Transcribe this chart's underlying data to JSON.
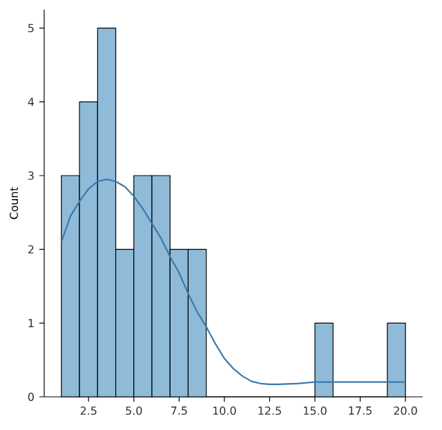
{
  "chart_data": {
    "type": "histogram",
    "ylabel": "Count",
    "series": [
      {
        "color": "#8fbbd9",
        "bins": [
          1,
          2,
          3,
          4,
          5,
          6,
          7,
          8,
          9,
          10,
          11,
          12,
          13,
          14,
          15,
          16,
          17,
          18,
          19,
          20
        ],
        "values": [
          3,
          4,
          5,
          2,
          3,
          3,
          2,
          2,
          0,
          0,
          0,
          0,
          0,
          0,
          1,
          0,
          0,
          0,
          1
        ]
      },
      {
        "type": "line",
        "color": "#3a78ad",
        "x": [
          1,
          1.5,
          2,
          2.5,
          3,
          3.5,
          4,
          4.5,
          5,
          5.5,
          6,
          6.5,
          7,
          7.5,
          8,
          8.5,
          9,
          9.5,
          10,
          10.5,
          11,
          11.5,
          12,
          12.5,
          13,
          14,
          15,
          16,
          17,
          18,
          19,
          20
        ],
        "values": [
          2.1,
          2.45,
          2.65,
          2.82,
          2.92,
          2.95,
          2.92,
          2.85,
          2.72,
          2.55,
          2.35,
          2.15,
          1.9,
          1.68,
          1.4,
          1.15,
          0.95,
          0.72,
          0.52,
          0.38,
          0.28,
          0.21,
          0.18,
          0.17,
          0.17,
          0.18,
          0.2,
          0.2,
          0.2,
          0.2,
          0.2,
          0.2
        ]
      }
    ],
    "xlim": [
      0.05,
      20.95
    ],
    "ylim": [
      0,
      5.25
    ],
    "xticks": [
      {
        "value": 2.5,
        "label": "2.5"
      },
      {
        "value": 5,
        "label": "5.0"
      },
      {
        "value": 7.5,
        "label": "7.5"
      },
      {
        "value": 10,
        "label": "10.0"
      },
      {
        "value": 12.5,
        "label": "12.5"
      },
      {
        "value": 15,
        "label": "15.0"
      },
      {
        "value": 17.5,
        "label": "17.5"
      },
      {
        "value": 20,
        "label": "20.0"
      }
    ],
    "yticks": [
      0,
      1,
      2,
      3,
      4,
      5
    ],
    "grid": false
  }
}
